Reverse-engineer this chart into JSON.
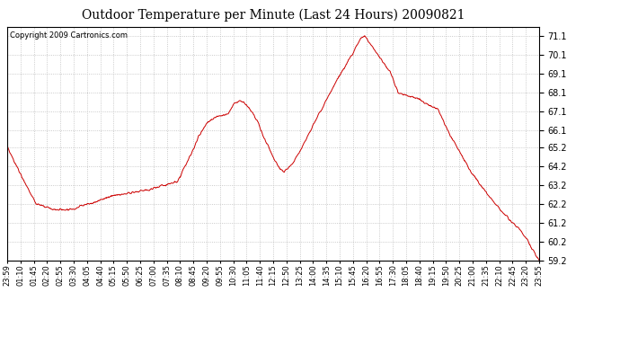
{
  "title": "Outdoor Temperature per Minute (Last 24 Hours) 20090821",
  "copyright": "Copyright 2009 Cartronics.com",
  "line_color": "#cc0000",
  "background_color": "#ffffff",
  "plot_bg_color": "#ffffff",
  "grid_color": "#bbbbbb",
  "ylim": [
    59.2,
    71.6
  ],
  "yticks": [
    59.2,
    60.2,
    61.2,
    62.2,
    63.2,
    64.2,
    65.2,
    66.1,
    67.1,
    68.1,
    69.1,
    70.1,
    71.1
  ],
  "xtick_labels": [
    "23:59",
    "01:10",
    "01:45",
    "02:20",
    "02:55",
    "03:30",
    "04:05",
    "04:40",
    "05:15",
    "05:50",
    "06:25",
    "07:00",
    "07:35",
    "08:10",
    "08:45",
    "09:20",
    "09:55",
    "10:30",
    "11:05",
    "11:40",
    "12:15",
    "12:50",
    "13:25",
    "14:00",
    "14:35",
    "15:10",
    "15:45",
    "16:20",
    "16:55",
    "17:30",
    "18:05",
    "18:40",
    "19:15",
    "19:50",
    "20:25",
    "21:00",
    "21:35",
    "22:10",
    "22:45",
    "23:20",
    "23:55"
  ],
  "key_points_x": [
    0.0,
    0.025,
    0.055,
    0.085,
    0.115,
    0.13,
    0.15,
    0.165,
    0.18,
    0.21,
    0.23,
    0.25,
    0.27,
    0.295,
    0.32,
    0.345,
    0.36,
    0.375,
    0.39,
    0.4,
    0.415,
    0.425,
    0.438,
    0.448,
    0.458,
    0.465,
    0.472,
    0.48,
    0.49,
    0.5,
    0.51,
    0.52,
    0.535,
    0.55,
    0.565,
    0.59,
    0.62,
    0.65,
    0.665,
    0.672,
    0.68,
    0.7,
    0.72,
    0.735,
    0.75,
    0.77,
    0.79,
    0.81,
    0.83,
    0.85,
    0.87,
    0.89,
    0.91,
    0.93,
    0.95,
    0.965,
    0.98,
    1.0
  ],
  "key_points_y": [
    65.2,
    63.8,
    62.2,
    61.9,
    61.9,
    62.0,
    62.2,
    62.3,
    62.5,
    62.7,
    62.8,
    62.9,
    63.0,
    63.2,
    63.4,
    64.8,
    65.8,
    66.5,
    66.8,
    66.9,
    67.0,
    67.5,
    67.7,
    67.5,
    67.2,
    66.9,
    66.5,
    65.9,
    65.3,
    64.7,
    64.2,
    63.9,
    64.3,
    65.0,
    65.8,
    67.2,
    68.8,
    70.2,
    71.0,
    71.1,
    70.8,
    70.0,
    69.2,
    68.1,
    68.0,
    67.8,
    67.5,
    67.2,
    66.0,
    65.0,
    64.0,
    63.2,
    62.5,
    61.8,
    61.2,
    60.8,
    60.2,
    59.2
  ]
}
